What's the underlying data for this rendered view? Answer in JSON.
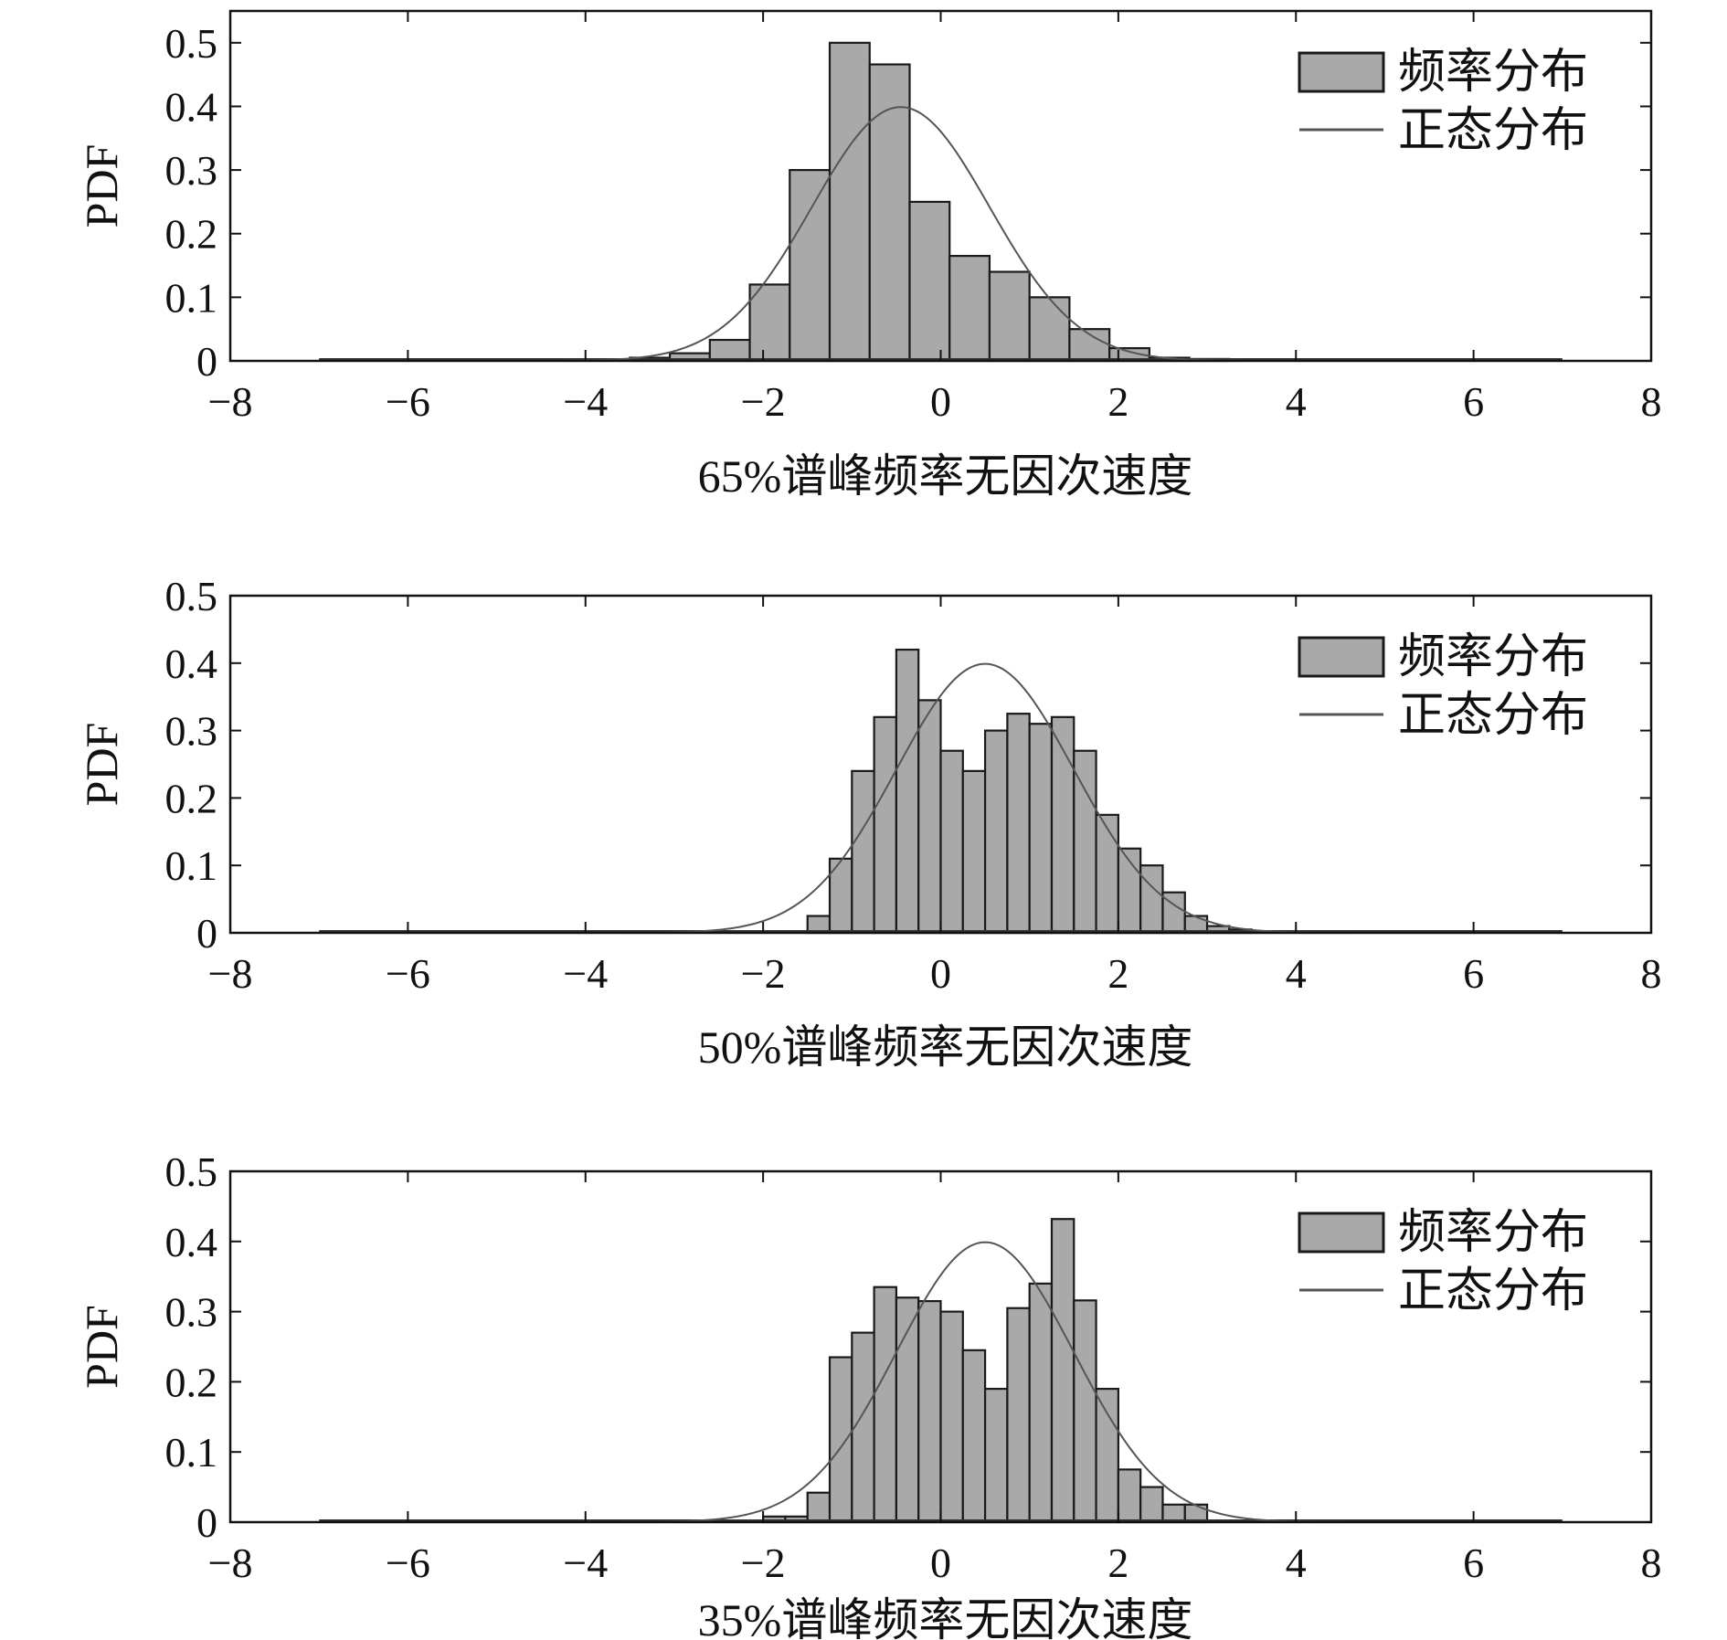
{
  "legend": {
    "hist_label": "频率分布",
    "normal_label": "正态分布"
  },
  "colors": {
    "bar_fill": "#a9a9a9",
    "bar_stroke": "#1a1a1a",
    "curve": "#555555",
    "axis": "#111111"
  },
  "chart_data": [
    {
      "type": "bar",
      "xlabel": "65%谱峰频率无因次速度",
      "ylabel": "PDF",
      "xlim": [
        -8,
        8
      ],
      "ylim": [
        0,
        0.55
      ],
      "xticks": [
        -8,
        -6,
        -4,
        -2,
        0,
        2,
        4,
        6,
        8
      ],
      "yticks": [
        0,
        0.1,
        0.2,
        0.3,
        0.4,
        0.5
      ],
      "legend_position": "top-right",
      "grid": false,
      "bin_width": 0.45,
      "bins": [
        {
          "x0": -3.5,
          "value": 0.005
        },
        {
          "x0": -3.05,
          "value": 0.012
        },
        {
          "x0": -2.6,
          "value": 0.033
        },
        {
          "x0": -2.15,
          "value": 0.12
        },
        {
          "x0": -1.7,
          "value": 0.3
        },
        {
          "x0": -1.25,
          "value": 0.5
        },
        {
          "x0": -0.8,
          "value": 0.466
        },
        {
          "x0": -0.35,
          "value": 0.25
        },
        {
          "x0": 0.1,
          "value": 0.165
        },
        {
          "x0": 0.55,
          "value": 0.14
        },
        {
          "x0": 1.0,
          "value": 0.1
        },
        {
          "x0": 1.45,
          "value": 0.05
        },
        {
          "x0": 1.9,
          "value": 0.02
        },
        {
          "x0": 2.35,
          "value": 0.005
        },
        {
          "x0": 2.8,
          "value": 0.003
        }
      ],
      "normal": {
        "mean": -0.45,
        "std": 1.0,
        "x_range": [
          -7,
          7
        ]
      }
    },
    {
      "type": "bar",
      "xlabel": "50%谱峰频率无因次速度",
      "ylabel": "PDF",
      "xlim": [
        -8,
        8
      ],
      "ylim": [
        0,
        0.5
      ],
      "xticks": [
        -8,
        -6,
        -4,
        -2,
        0,
        2,
        4,
        6,
        8
      ],
      "yticks": [
        0,
        0.1,
        0.2,
        0.3,
        0.4,
        0.5
      ],
      "legend_position": "top-right",
      "grid": false,
      "bin_width": 0.25,
      "bins": [
        {
          "x0": -1.5,
          "value": 0.025
        },
        {
          "x0": -1.25,
          "value": 0.11
        },
        {
          "x0": -1.0,
          "value": 0.24
        },
        {
          "x0": -0.75,
          "value": 0.32
        },
        {
          "x0": -0.5,
          "value": 0.42
        },
        {
          "x0": -0.25,
          "value": 0.345
        },
        {
          "x0": 0.0,
          "value": 0.27
        },
        {
          "x0": 0.25,
          "value": 0.24
        },
        {
          "x0": 0.5,
          "value": 0.3
        },
        {
          "x0": 0.75,
          "value": 0.325
        },
        {
          "x0": 1.0,
          "value": 0.31
        },
        {
          "x0": 1.25,
          "value": 0.32
        },
        {
          "x0": 1.5,
          "value": 0.27
        },
        {
          "x0": 1.75,
          "value": 0.175
        },
        {
          "x0": 2.0,
          "value": 0.125
        },
        {
          "x0": 2.25,
          "value": 0.1
        },
        {
          "x0": 2.5,
          "value": 0.06
        },
        {
          "x0": 2.75,
          "value": 0.025
        },
        {
          "x0": 3.0,
          "value": 0.01
        },
        {
          "x0": 3.25,
          "value": 0.005
        }
      ],
      "normal": {
        "mean": 0.5,
        "std": 1.0,
        "x_range": [
          -7,
          7
        ]
      }
    },
    {
      "type": "bar",
      "xlabel": "35%谱峰频率无因次速度",
      "ylabel": "PDF",
      "xlim": [
        -8,
        8
      ],
      "ylim": [
        0,
        0.5
      ],
      "xticks": [
        -8,
        -6,
        -4,
        -2,
        0,
        2,
        4,
        6,
        8
      ],
      "yticks": [
        0,
        0.1,
        0.2,
        0.3,
        0.4,
        0.5
      ],
      "legend_position": "top-right",
      "grid": false,
      "bin_width": 0.25,
      "bins": [
        {
          "x0": -2.0,
          "value": 0.008
        },
        {
          "x0": -1.75,
          "value": 0.008
        },
        {
          "x0": -1.5,
          "value": 0.042
        },
        {
          "x0": -1.25,
          "value": 0.235
        },
        {
          "x0": -1.0,
          "value": 0.27
        },
        {
          "x0": -0.75,
          "value": 0.335
        },
        {
          "x0": -0.5,
          "value": 0.32
        },
        {
          "x0": -0.25,
          "value": 0.315
        },
        {
          "x0": 0.0,
          "value": 0.3
        },
        {
          "x0": 0.25,
          "value": 0.245
        },
        {
          "x0": 0.5,
          "value": 0.19
        },
        {
          "x0": 0.75,
          "value": 0.305
        },
        {
          "x0": 1.0,
          "value": 0.34
        },
        {
          "x0": 1.25,
          "value": 0.432
        },
        {
          "x0": 1.5,
          "value": 0.316
        },
        {
          "x0": 1.75,
          "value": 0.19
        },
        {
          "x0": 2.0,
          "value": 0.075
        },
        {
          "x0": 2.25,
          "value": 0.05
        },
        {
          "x0": 2.5,
          "value": 0.025
        },
        {
          "x0": 2.75,
          "value": 0.025
        }
      ],
      "normal": {
        "mean": 0.5,
        "std": 1.0,
        "x_range": [
          -7,
          7
        ]
      }
    }
  ]
}
